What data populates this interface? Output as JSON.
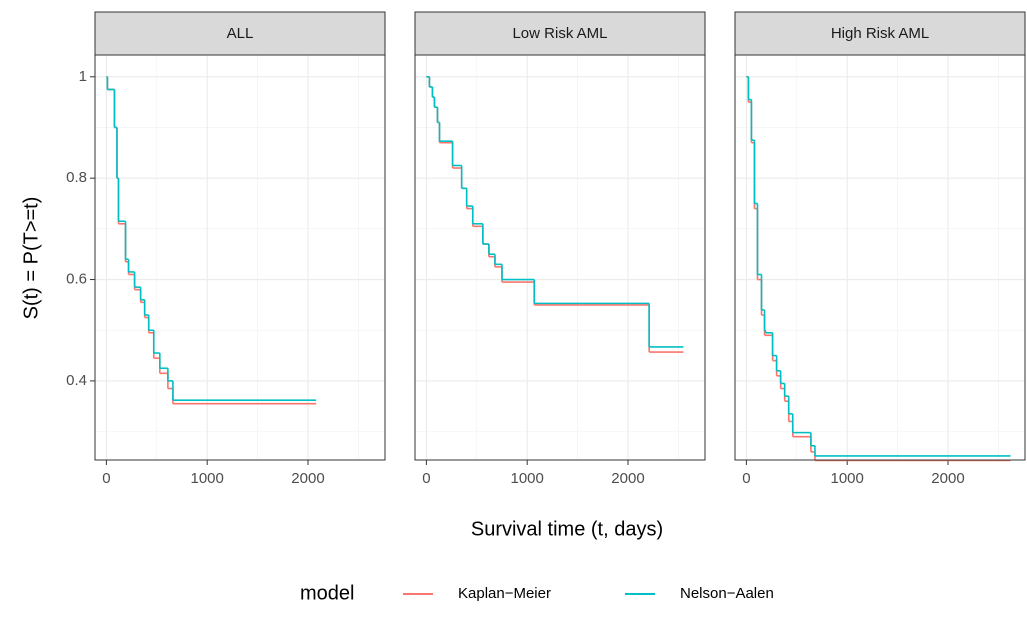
{
  "chart_data": [
    {
      "type": "step",
      "title": "ALL",
      "x": [
        0,
        10,
        80,
        105,
        120,
        190,
        220,
        280,
        340,
        380,
        420,
        470,
        530,
        610,
        660,
        2081
      ],
      "series": [
        {
          "name": "Kaplan−Meier",
          "color": "#F8766D",
          "values": [
            1.0,
            0.975,
            0.9,
            0.8,
            0.71,
            0.635,
            0.61,
            0.58,
            0.555,
            0.525,
            0.495,
            0.445,
            0.415,
            0.385,
            0.355,
            0.355
          ]
        },
        {
          "name": "Nelson−Aalen",
          "color": "#00BFC4",
          "values": [
            1.0,
            0.975,
            0.9,
            0.8,
            0.715,
            0.64,
            0.615,
            0.585,
            0.56,
            0.53,
            0.5,
            0.455,
            0.425,
            0.4,
            0.362,
            0.362
          ]
        }
      ],
      "xlim": [
        -113,
        2764
      ],
      "ylim": [
        0.244,
        1.043
      ],
      "xticks": [
        0,
        1000,
        2000
      ],
      "yticks": [
        0.4,
        0.6,
        0.8,
        1.0
      ],
      "x_minor_grid": [
        500,
        1500,
        2500
      ],
      "y_minor_grid": [
        0.3,
        0.5,
        0.7,
        0.9
      ]
    },
    {
      "type": "step",
      "title": "Low Risk AML",
      "x": [
        0,
        30,
        60,
        80,
        110,
        130,
        170,
        260,
        350,
        400,
        460,
        560,
        620,
        680,
        750,
        1070,
        2210,
        2550
      ],
      "series": [
        {
          "name": "Kaplan−Meier",
          "color": "#F8766D",
          "values": [
            1.0,
            0.98,
            0.96,
            0.94,
            0.91,
            0.87,
            0.87,
            0.82,
            0.78,
            0.74,
            0.705,
            0.67,
            0.645,
            0.625,
            0.595,
            0.55,
            0.457,
            0.457
          ]
        },
        {
          "name": "Nelson−Aalen",
          "color": "#00BFC4",
          "values": [
            1.0,
            0.98,
            0.96,
            0.94,
            0.91,
            0.873,
            0.873,
            0.825,
            0.78,
            0.745,
            0.71,
            0.67,
            0.65,
            0.63,
            0.6,
            0.553,
            0.467,
            0.467
          ]
        }
      ],
      "xlim": [
        -113,
        2764
      ],
      "ylim": [
        0.244,
        1.043
      ],
      "xticks": [
        0,
        1000,
        2000
      ],
      "yticks": [
        0.4,
        0.6,
        0.8,
        1.0
      ],
      "x_minor_grid": [
        500,
        1500,
        2500
      ],
      "y_minor_grid": [
        0.3,
        0.5,
        0.7,
        0.9
      ]
    },
    {
      "type": "step",
      "title": "High Risk AML",
      "x": [
        0,
        20,
        50,
        80,
        110,
        150,
        180,
        190,
        260,
        300,
        340,
        380,
        420,
        460,
        640,
        680,
        2620
      ],
      "series": [
        {
          "name": "Kaplan−Meier",
          "color": "#F8766D",
          "values": [
            1.0,
            0.95,
            0.87,
            0.74,
            0.6,
            0.53,
            0.49,
            0.49,
            0.44,
            0.41,
            0.385,
            0.36,
            0.32,
            0.29,
            0.26,
            0.243,
            0.243
          ]
        },
        {
          "name": "Nelson−Aalen",
          "color": "#00BFC4",
          "values": [
            1.0,
            0.955,
            0.875,
            0.75,
            0.61,
            0.54,
            0.5,
            0.495,
            0.45,
            0.42,
            0.395,
            0.37,
            0.335,
            0.298,
            0.272,
            0.252,
            0.252
          ]
        }
      ],
      "xlim": [
        -113,
        2764
      ],
      "ylim": [
        0.244,
        1.043
      ],
      "xticks": [
        0,
        1000,
        2000
      ],
      "yticks": [
        0.4,
        0.6,
        0.8,
        1.0
      ],
      "x_minor_grid": [
        500,
        1500,
        2500
      ],
      "y_minor_grid": [
        0.3,
        0.5,
        0.7,
        0.9
      ]
    }
  ],
  "y_label": "S(t) = P(T>=t)",
  "x_label": "Survival time (t, days)",
  "legend_title": "model"
}
